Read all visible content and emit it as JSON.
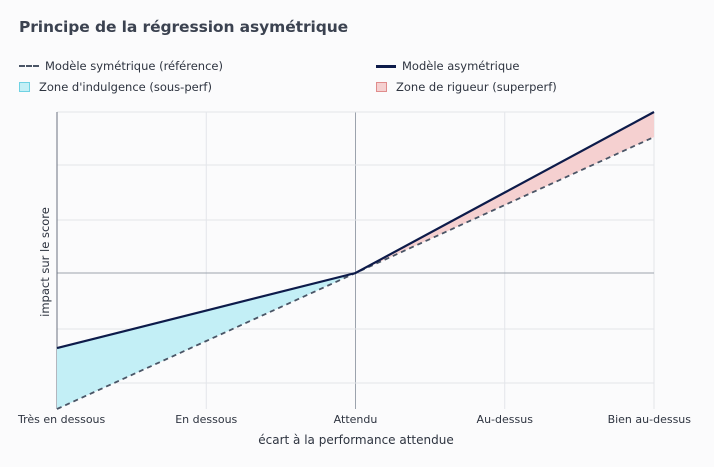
{
  "title": "Principe de la régression asymétrique",
  "legend": {
    "symmetric": "Modèle symétrique (référence)",
    "asymmetric": "Modèle asymétrique",
    "indulgence": "Zone d'indulgence (sous-perf)",
    "rigueur": "Zone de rigueur (superperf)"
  },
  "colors": {
    "asymmetric": "#0d1b4a",
    "symmetric": "#4a5566",
    "indulgence_fill": "#c3eff6",
    "indulgence_stroke": "#6fd2e3",
    "rigueur_fill": "#f5d0d0",
    "rigueur_stroke": "#e08c8c",
    "grid": "#e3e5e9",
    "axis": "#9ca3ad"
  },
  "chart_data": {
    "type": "line",
    "title": "Principe de la régression asymétrique",
    "xlabel": "écart à la performance attendue",
    "ylabel": "impact sur le score",
    "x_ticks": [
      "Très en dessous",
      "En dessous",
      "Attendu",
      "Au-dessus",
      "Bien au-dessus"
    ],
    "xlim": [
      -2,
      2
    ],
    "ylim": [
      -1.25,
      1.48
    ],
    "grid": true,
    "series": [
      {
        "name": "Modèle symétrique (référence)",
        "style": "dashed",
        "x": [
          -2,
          -1,
          0,
          1,
          2
        ],
        "y": [
          -1.25,
          -0.625,
          0,
          0.625,
          1.25
        ]
      },
      {
        "name": "Modèle asymétrique",
        "style": "solid",
        "x": [
          -2,
          -1,
          0,
          1,
          2
        ],
        "y": [
          -0.69,
          -0.345,
          0,
          0.74,
          1.48
        ]
      }
    ],
    "areas": [
      {
        "name": "Zone d'indulgence (sous-perf)",
        "x_range": [
          -2,
          0
        ]
      },
      {
        "name": "Zone de rigueur (superperf)",
        "x_range": [
          0,
          2
        ]
      }
    ]
  }
}
